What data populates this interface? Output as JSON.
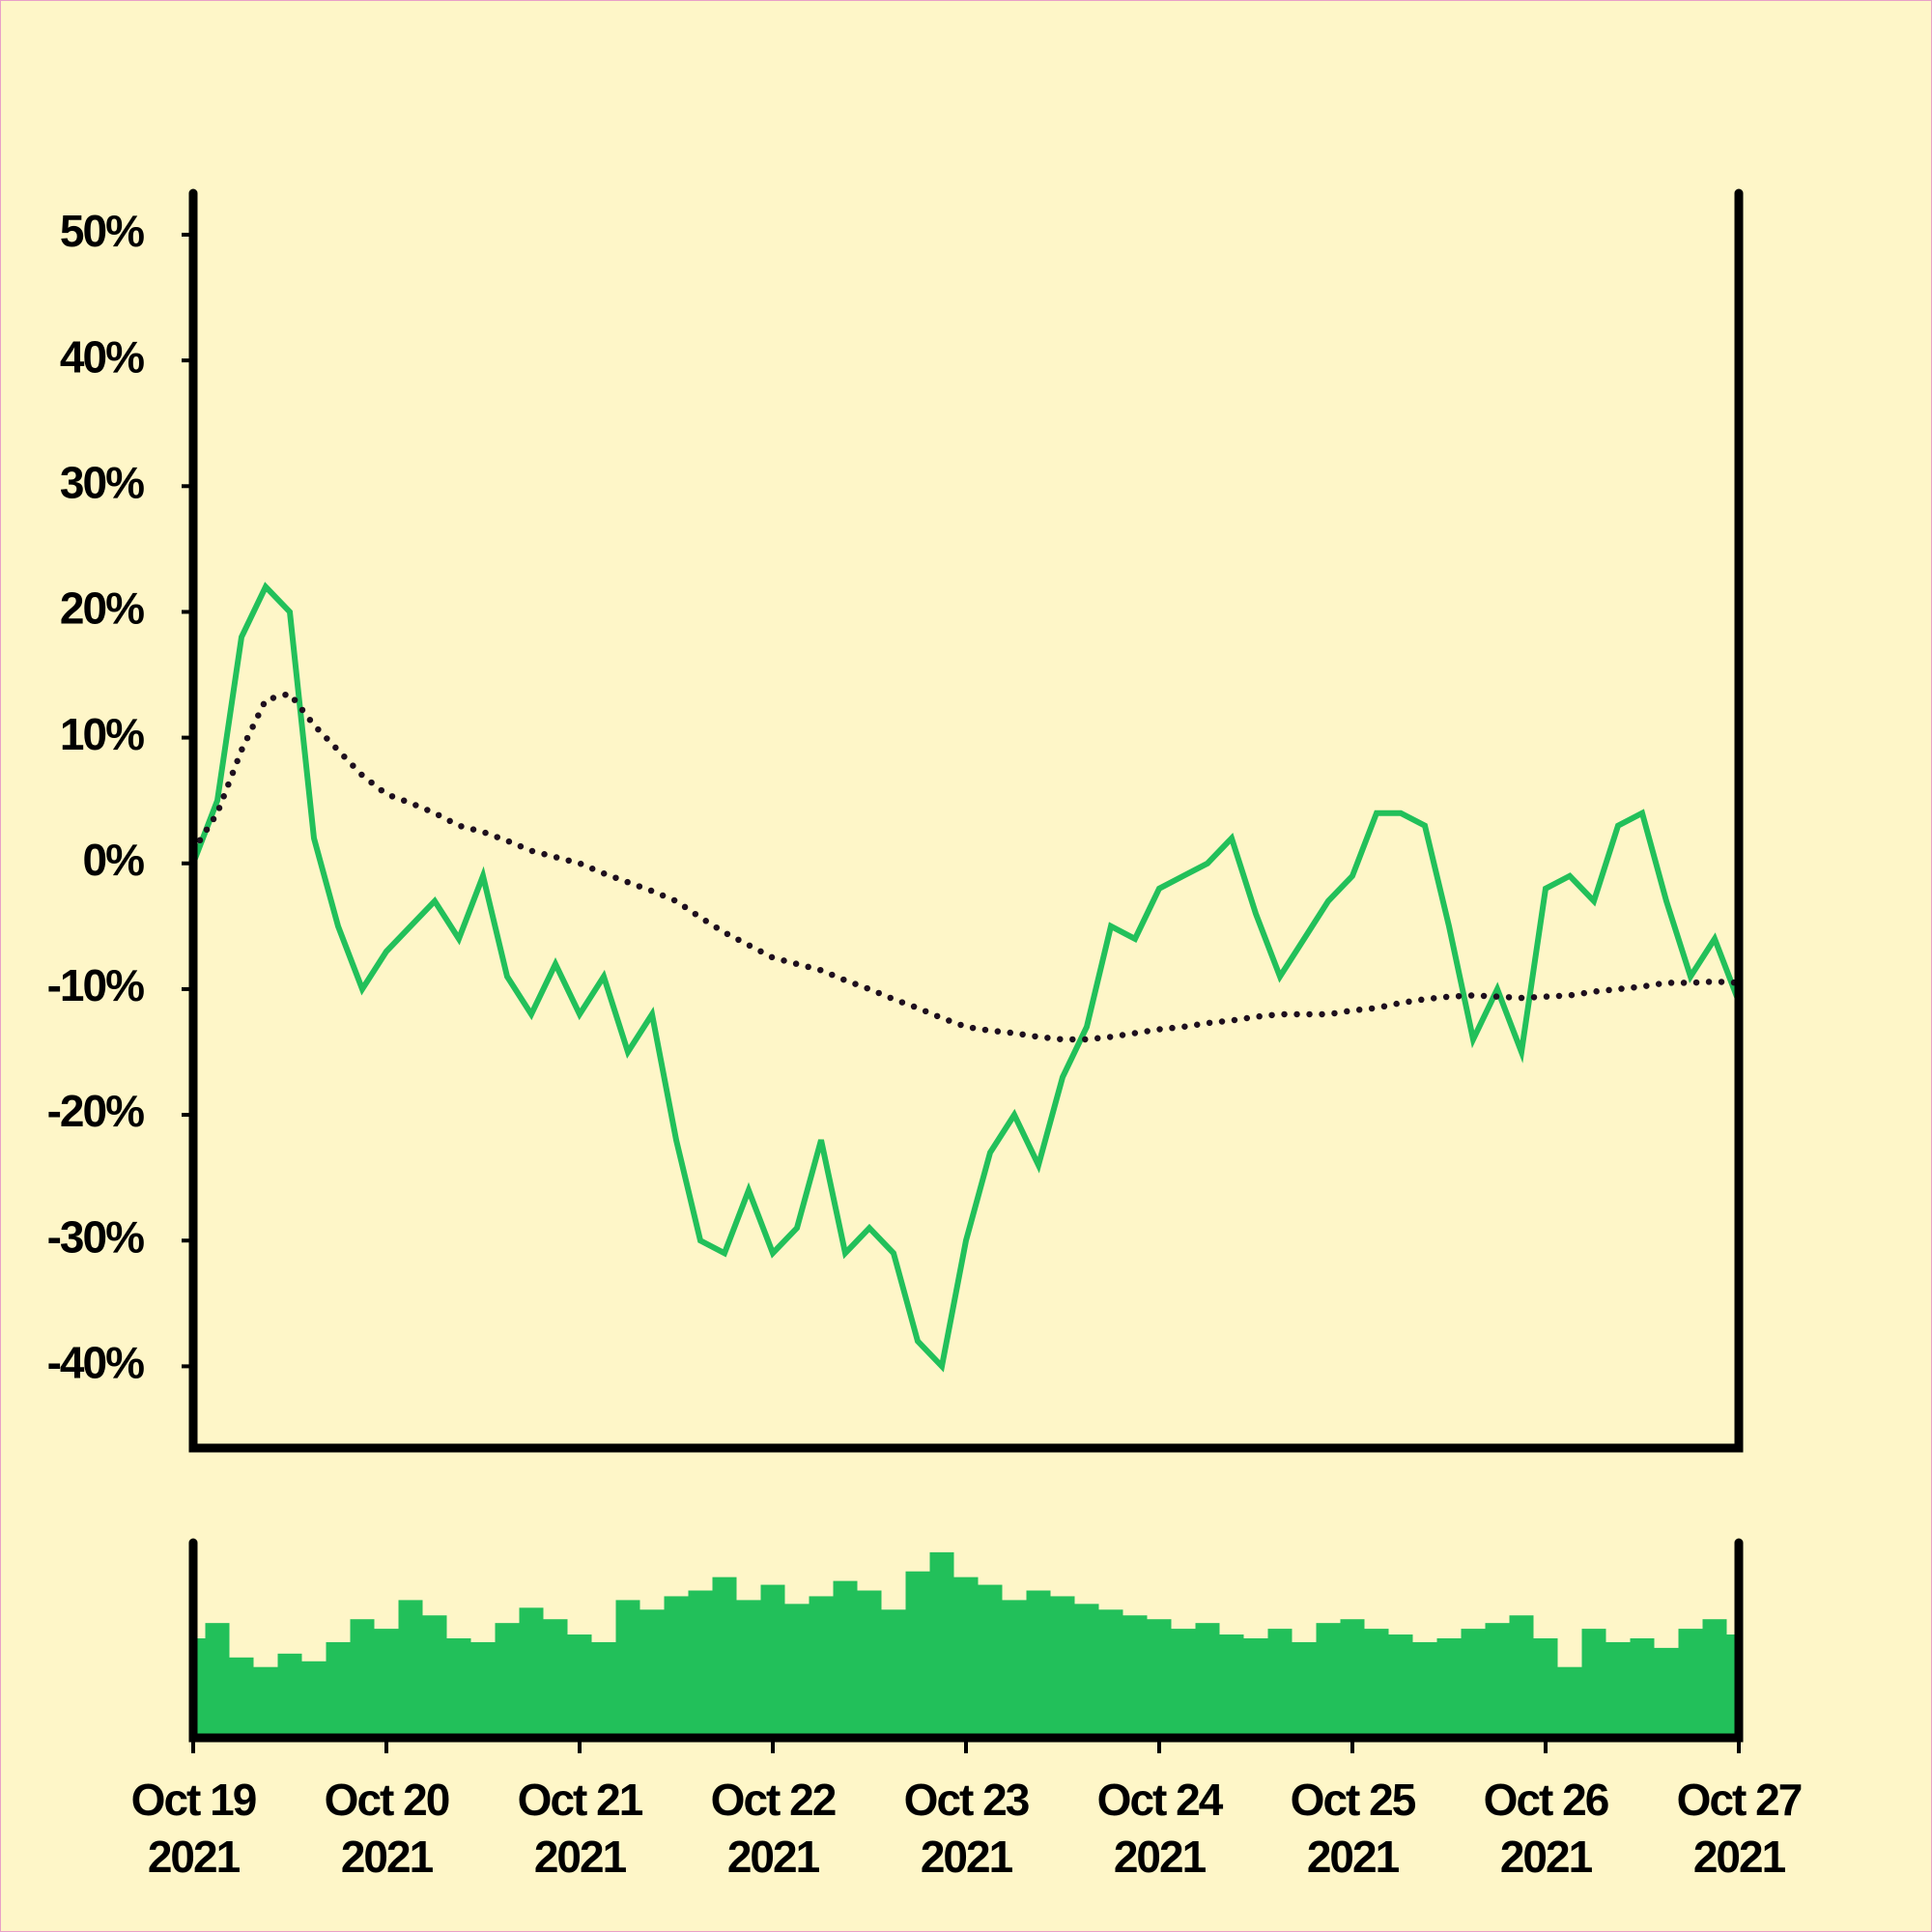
{
  "chart_data": {
    "type": "line",
    "x": [
      "2021-10-19T00:00",
      "2021-10-19T03:00",
      "2021-10-19T06:00",
      "2021-10-19T09:00",
      "2021-10-19T12:00",
      "2021-10-19T15:00",
      "2021-10-19T18:00",
      "2021-10-19T21:00",
      "2021-10-20T00:00",
      "2021-10-20T03:00",
      "2021-10-20T06:00",
      "2021-10-20T09:00",
      "2021-10-20T12:00",
      "2021-10-20T15:00",
      "2021-10-20T18:00",
      "2021-10-20T21:00",
      "2021-10-21T00:00",
      "2021-10-21T03:00",
      "2021-10-21T06:00",
      "2021-10-21T09:00",
      "2021-10-21T12:00",
      "2021-10-21T15:00",
      "2021-10-21T18:00",
      "2021-10-21T21:00",
      "2021-10-22T00:00",
      "2021-10-22T03:00",
      "2021-10-22T06:00",
      "2021-10-22T09:00",
      "2021-10-22T12:00",
      "2021-10-22T15:00",
      "2021-10-22T18:00",
      "2021-10-22T21:00",
      "2021-10-23T00:00",
      "2021-10-23T03:00",
      "2021-10-23T06:00",
      "2021-10-23T09:00",
      "2021-10-23T12:00",
      "2021-10-23T15:00",
      "2021-10-23T18:00",
      "2021-10-23T21:00",
      "2021-10-24T00:00",
      "2021-10-24T03:00",
      "2021-10-24T06:00",
      "2021-10-24T09:00",
      "2021-10-24T12:00",
      "2021-10-24T15:00",
      "2021-10-24T18:00",
      "2021-10-24T21:00",
      "2021-10-25T00:00",
      "2021-10-25T03:00",
      "2021-10-25T06:00",
      "2021-10-25T09:00",
      "2021-10-25T12:00",
      "2021-10-25T15:00",
      "2021-10-25T18:00",
      "2021-10-25T21:00",
      "2021-10-26T00:00",
      "2021-10-26T03:00",
      "2021-10-26T06:00",
      "2021-10-26T09:00",
      "2021-10-26T12:00",
      "2021-10-26T15:00",
      "2021-10-26T18:00",
      "2021-10-26T21:00",
      "2021-10-27T00:00"
    ],
    "values": [
      0,
      5,
      18,
      22,
      20,
      2,
      -5,
      -10,
      -7,
      -5,
      -3,
      -6,
      -1,
      -9,
      -12,
      -8,
      -12,
      -9,
      -15,
      -12,
      -22,
      -30,
      -31,
      -26,
      -31,
      -29,
      -22,
      -31,
      -29,
      -31,
      -38,
      -40,
      -30,
      -23,
      -20,
      -24,
      -17,
      -13,
      -5,
      -6,
      -2,
      -1,
      0,
      2,
      -4,
      -9,
      -6,
      -3,
      -1,
      4,
      4,
      3,
      -5,
      -14,
      -10,
      -15,
      -2,
      -1,
      -3,
      3,
      4,
      -3,
      -9,
      -6,
      -11
    ],
    "color": "#22c05a",
    "moving_average": [
      1,
      4,
      9,
      13,
      13.5,
      11,
      9,
      7,
      5.5,
      4.8,
      4,
      3,
      2.5,
      1.8,
      1,
      0.5,
      0,
      -0.8,
      -1.5,
      -2.2,
      -3,
      -4.3,
      -5.5,
      -6.5,
      -7.5,
      -8,
      -8.5,
      -9.3,
      -10,
      -10.8,
      -11.5,
      -12.3,
      -13,
      -13.3,
      -13.5,
      -13.8,
      -14,
      -14,
      -13.8,
      -13.5,
      -13.2,
      -13,
      -12.7,
      -12.5,
      -12.2,
      -12,
      -12,
      -12,
      -11.7,
      -11.5,
      -11.1,
      -10.8,
      -10.6,
      -10.5,
      -10.6,
      -10.7,
      -10.6,
      -10.5,
      -10.2,
      -10,
      -9.8,
      -9.5,
      -9.5,
      -9.4,
      -9.5
    ],
    "moving_average_color": "#1e0f1e",
    "volume": [
      50,
      58,
      40,
      35,
      42,
      38,
      48,
      60,
      55,
      70,
      62,
      50,
      48,
      58,
      66,
      60,
      52,
      48,
      70,
      65,
      72,
      75,
      82,
      70,
      78,
      68,
      72,
      80,
      75,
      65,
      85,
      95,
      82,
      78,
      70,
      75,
      72,
      68,
      65,
      62,
      60,
      55,
      58,
      52,
      50,
      55,
      48,
      58,
      60,
      55,
      52,
      48,
      50,
      55,
      58,
      62,
      50,
      35,
      55,
      48,
      50,
      45,
      55,
      60,
      52
    ],
    "volume_color": "#22c05a",
    "volume_lim": [
      0,
      100
    ],
    "xlim": [
      "2021-10-19T00:00",
      "2021-10-27T00:00"
    ],
    "xticks": [
      {
        "value": "2021-10-19T00:00",
        "label": [
          "Oct 19",
          "2021"
        ]
      },
      {
        "value": "2021-10-20T00:00",
        "label": [
          "Oct 20",
          "2021"
        ]
      },
      {
        "value": "2021-10-21T00:00",
        "label": [
          "Oct 21",
          "2021"
        ]
      },
      {
        "value": "2021-10-22T00:00",
        "label": [
          "Oct 22",
          "2021"
        ]
      },
      {
        "value": "2021-10-23T00:00",
        "label": [
          "Oct 23",
          "2021"
        ]
      },
      {
        "value": "2021-10-24T00:00",
        "label": [
          "Oct 24",
          "2021"
        ]
      },
      {
        "value": "2021-10-25T00:00",
        "label": [
          "Oct 25",
          "2021"
        ]
      },
      {
        "value": "2021-10-26T00:00",
        "label": [
          "Oct 26",
          "2021"
        ]
      },
      {
        "value": "2021-10-27T00:00",
        "label": [
          "Oct 27",
          "2021"
        ]
      }
    ],
    "ylim": [
      -46.5,
      53.3
    ],
    "yticks": [
      {
        "value": 50,
        "label": "50%"
      },
      {
        "value": 40,
        "label": "40%"
      },
      {
        "value": 30,
        "label": "30%"
      },
      {
        "value": 20,
        "label": "20%"
      },
      {
        "value": 10,
        "label": "10%"
      },
      {
        "value": 0,
        "label": "0%"
      },
      {
        "value": -10,
        "label": "-10%"
      },
      {
        "value": -20,
        "label": "-20%"
      },
      {
        "value": -30,
        "label": "-30%"
      },
      {
        "value": -40,
        "label": "-40%"
      }
    ]
  }
}
